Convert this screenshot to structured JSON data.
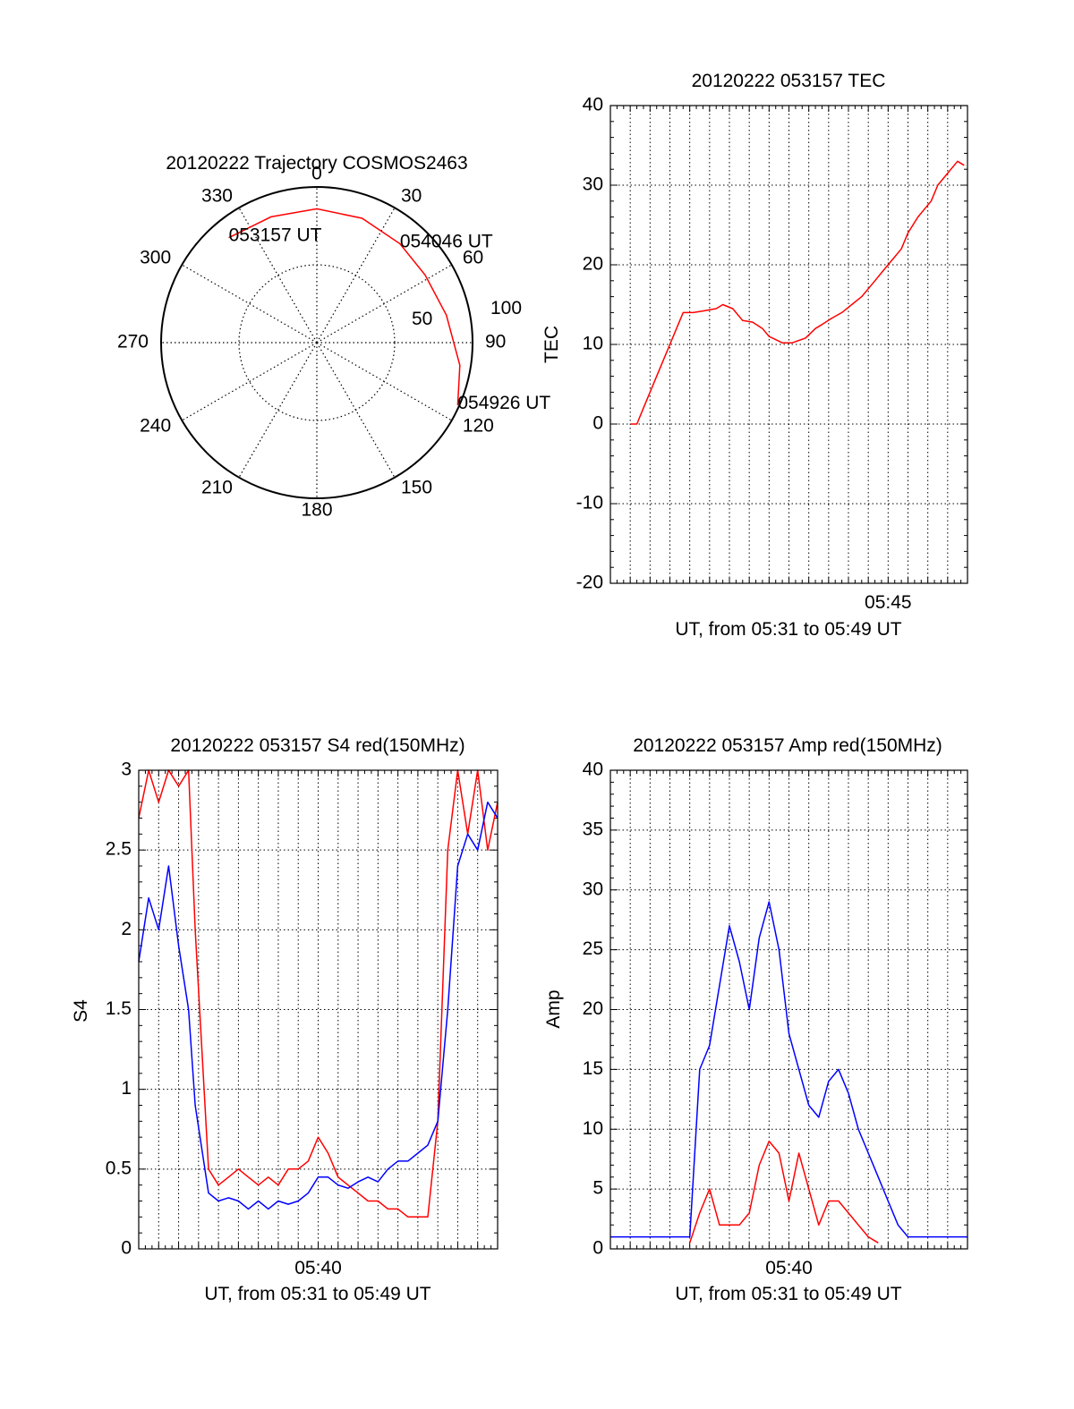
{
  "colors": {
    "red": "#ff0000",
    "blue": "#0000ff",
    "axis": "#000000",
    "background": "#ffffff"
  },
  "chart_data": [
    {
      "id": "trajectory",
      "type": "polar",
      "title": "20120222 Trajectory COSMOS2463",
      "azimuth_labels": [
        "0",
        "30",
        "60",
        "90",
        "120",
        "150",
        "180",
        "210",
        "240",
        "270",
        "300",
        "330"
      ],
      "elevation_rings": [
        0,
        50,
        100
      ],
      "radial_labels": [
        "50",
        "100"
      ],
      "grid": "dotted",
      "series": [
        {
          "color": "red",
          "points": [
            {
              "az": 320,
              "r": 88,
              "label": "053157 UT"
            },
            {
              "az": 340,
              "r": 86
            },
            {
              "az": 0,
              "r": 86
            },
            {
              "az": 20,
              "r": 85
            },
            {
              "az": 40,
              "r": 83,
              "label": "054046 UT"
            },
            {
              "az": 58,
              "r": 82
            },
            {
              "az": 78,
              "r": 85
            },
            {
              "az": 99,
              "r": 93
            },
            {
              "az": 114,
              "r": 99,
              "label": "054926 UT"
            }
          ]
        }
      ]
    },
    {
      "id": "tec",
      "type": "line",
      "title": "20120222 053157 TEC",
      "xlabel": "UT, from 05:31 to 05:49 UT",
      "ylabel": "TEC",
      "xlim": [
        "05:31",
        "05:49"
      ],
      "ylim": [
        -20,
        40
      ],
      "yticks": [
        "-20",
        "-10",
        "0",
        "10",
        "20",
        "30",
        "40"
      ],
      "xtick_labels": [
        {
          "t": "05:45",
          "label": "05:45"
        }
      ],
      "grid": "dotted",
      "series": [
        {
          "color": "red",
          "x": [
            "05:32:01",
            "05:32:20",
            "05:32:40",
            "05:33:00",
            "05:33:20",
            "05:33:40",
            "05:34:00",
            "05:34:20",
            "05:34:40",
            "05:35:10",
            "05:35:40",
            "05:36:20",
            "05:36:40",
            "05:37:10",
            "05:37:40",
            "05:38:10",
            "05:38:40",
            "05:39:00",
            "05:39:40",
            "05:40:10",
            "05:40:50",
            "05:41:20",
            "05:41:40",
            "05:42:10",
            "05:42:40",
            "05:43:10",
            "05:43:40",
            "05:44:00",
            "05:44:20",
            "05:44:40",
            "05:45:00",
            "05:45:20",
            "05:45:40",
            "05:46:00",
            "05:46:30",
            "05:46:50",
            "05:47:10",
            "05:47:30",
            "05:47:50",
            "05:48:10",
            "05:48:30",
            "05:48:50"
          ],
          "y": [
            0,
            0,
            2,
            4,
            6,
            8,
            10,
            12,
            14,
            14,
            14.2,
            14.5,
            15,
            14.5,
            13,
            12.8,
            12,
            11,
            10.2,
            10.2,
            10.8,
            12,
            12.5,
            13.3,
            14,
            15,
            16,
            17,
            18,
            19,
            20,
            21,
            22,
            24,
            26,
            27,
            28,
            30,
            31,
            32,
            33,
            32.5
          ]
        }
      ]
    },
    {
      "id": "s4",
      "type": "line",
      "title": "20120222 053157 S4 red(150MHz)",
      "xlabel": "UT, from 05:31 to 05:49 UT",
      "ylabel": "S4",
      "xlim": [
        "05:31",
        "05:49"
      ],
      "ylim": [
        0,
        3
      ],
      "yticks": [
        "0",
        "0.5",
        "1",
        "1.5",
        "2",
        "2.5",
        "3"
      ],
      "xtick_labels": [
        {
          "t": "05:40",
          "label": "05:40"
        }
      ],
      "grid": "dotted",
      "series": [
        {
          "color": "red",
          "x": [
            "05:31:00",
            "05:31:30",
            "05:32:00",
            "05:32:30",
            "05:33:00",
            "05:33:30",
            "05:33:50",
            "05:34:30",
            "05:35:00",
            "05:35:30",
            "05:36:00",
            "05:36:30",
            "05:37:00",
            "05:37:30",
            "05:38:00",
            "05:38:30",
            "05:39:00",
            "05:39:30",
            "05:40:00",
            "05:40:30",
            "05:41:00",
            "05:41:30",
            "05:42:00",
            "05:42:30",
            "05:43:00",
            "05:43:30",
            "05:44:00",
            "05:44:30",
            "05:45:00",
            "05:45:30",
            "05:46:00",
            "05:46:30",
            "05:47:00",
            "05:47:30",
            "05:48:00",
            "05:48:30",
            "05:49:00"
          ],
          "y": [
            2.7,
            3.0,
            2.8,
            3.0,
            2.9,
            3.0,
            2.0,
            0.5,
            0.4,
            0.45,
            0.5,
            0.45,
            0.4,
            0.45,
            0.4,
            0.5,
            0.5,
            0.55,
            0.7,
            0.6,
            0.45,
            0.4,
            0.35,
            0.3,
            0.3,
            0.25,
            0.25,
            0.2,
            0.2,
            0.2,
            0.8,
            2.5,
            3.0,
            2.6,
            3.0,
            2.5,
            2.8
          ]
        },
        {
          "color": "blue",
          "x": [
            "05:31:00",
            "05:31:30",
            "05:32:00",
            "05:32:30",
            "05:33:00",
            "05:33:30",
            "05:33:50",
            "05:34:30",
            "05:35:00",
            "05:35:30",
            "05:36:00",
            "05:36:30",
            "05:37:00",
            "05:37:30",
            "05:38:00",
            "05:38:30",
            "05:39:00",
            "05:39:30",
            "05:40:00",
            "05:40:30",
            "05:41:00",
            "05:41:30",
            "05:42:00",
            "05:42:30",
            "05:43:00",
            "05:43:30",
            "05:44:00",
            "05:44:30",
            "05:45:00",
            "05:45:30",
            "05:46:00",
            "05:46:30",
            "05:47:00",
            "05:47:30",
            "05:48:00",
            "05:48:30",
            "05:49:00"
          ],
          "y": [
            1.8,
            2.2,
            2.0,
            2.4,
            1.9,
            1.5,
            0.9,
            0.35,
            0.3,
            0.32,
            0.3,
            0.25,
            0.3,
            0.25,
            0.3,
            0.28,
            0.3,
            0.35,
            0.45,
            0.45,
            0.4,
            0.38,
            0.42,
            0.45,
            0.42,
            0.5,
            0.55,
            0.55,
            0.6,
            0.65,
            0.8,
            1.5,
            2.4,
            2.6,
            2.5,
            2.8,
            2.7
          ]
        }
      ]
    },
    {
      "id": "amp",
      "type": "line",
      "title": "20120222 053157 Amp red(150MHz)",
      "xlabel": "UT, from 05:31 to 05:49 UT",
      "ylabel": "Amp",
      "xlim": [
        "05:31",
        "05:49"
      ],
      "ylim": [
        0,
        40
      ],
      "yticks": [
        "0",
        "5",
        "10",
        "15",
        "20",
        "25",
        "30",
        "35",
        "40"
      ],
      "xtick_labels": [
        {
          "t": "05:40",
          "label": "05:40"
        }
      ],
      "grid": "dotted",
      "series": [
        {
          "color": "red",
          "x": [
            "05:35:00",
            "05:35:30",
            "05:36:00",
            "05:36:30",
            "05:37:00",
            "05:37:30",
            "05:38:00",
            "05:38:30",
            "05:39:00",
            "05:39:30",
            "05:40:00",
            "05:40:30",
            "05:41:00",
            "05:41:30",
            "05:42:00",
            "05:42:30",
            "05:43:00",
            "05:43:30",
            "05:44:00",
            "05:44:30"
          ],
          "y": [
            0.5,
            3,
            5,
            2,
            2,
            2,
            3,
            7,
            9,
            8,
            4,
            8,
            5,
            2,
            4,
            4,
            3,
            2,
            1,
            0.5
          ]
        },
        {
          "color": "blue",
          "x": [
            "05:31:00",
            "05:32:00",
            "05:33:00",
            "05:34:00",
            "05:35:00",
            "05:35:30",
            "05:36:00",
            "05:36:30",
            "05:37:00",
            "05:37:30",
            "05:38:00",
            "05:38:30",
            "05:39:00",
            "05:39:30",
            "05:40:00",
            "05:40:30",
            "05:41:00",
            "05:41:30",
            "05:42:00",
            "05:42:30",
            "05:43:00",
            "05:43:30",
            "05:44:00",
            "05:44:30",
            "05:45:00",
            "05:45:30",
            "05:46:00",
            "05:47:00",
            "05:48:00",
            "05:49:00"
          ],
          "y": [
            1,
            1,
            1,
            1,
            1,
            15,
            17,
            22,
            27,
            24,
            20,
            26,
            29,
            25,
            18,
            15,
            12,
            11,
            14,
            15,
            13,
            10,
            8,
            6,
            4,
            2,
            1,
            1,
            1,
            1
          ]
        }
      ]
    }
  ]
}
